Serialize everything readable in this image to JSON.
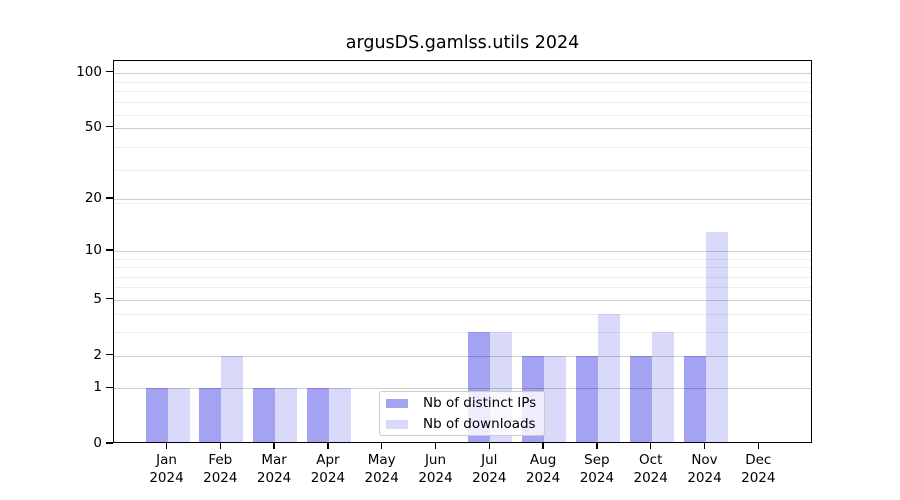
{
  "title": "argusDS.gamlss.utils 2024",
  "chart_data": {
    "type": "bar",
    "title": "argusDS.gamlss.utils 2024",
    "categories": [
      "Jan",
      "Feb",
      "Mar",
      "Apr",
      "May",
      "Jun",
      "Jul",
      "Aug",
      "Sep",
      "Oct",
      "Nov",
      "Dec"
    ],
    "x_year_label": "2024",
    "series": [
      {
        "name": "Nb of distinct IPs",
        "color": "#0000dc5c",
        "values": [
          1,
          1,
          1,
          1,
          0,
          0,
          3,
          2,
          2,
          2,
          2,
          0
        ]
      },
      {
        "name": "Nb of downloads",
        "color": "#0000dc26",
        "values": [
          1,
          2,
          1,
          1,
          0,
          0,
          3,
          2,
          4,
          3,
          13,
          0
        ]
      }
    ],
    "y_axis": {
      "scale": "log1p",
      "tick_values": [
        0,
        1,
        2,
        5,
        10,
        20,
        50,
        100
      ],
      "tick_labels": [
        "0",
        "1",
        "2",
        "5",
        "10",
        "20",
        "50",
        "100"
      ],
      "minor_gridlines_1plus_v": [
        4,
        5,
        7,
        8,
        9,
        10,
        20,
        30,
        40,
        60,
        70,
        80,
        90
      ],
      "top_value": 116
    },
    "grid": "horizontal",
    "legend": {
      "location": "lower center",
      "entries": [
        "Nb of distinct IPs",
        "Nb of downloads"
      ]
    },
    "colors": {
      "bar_distinct_ips": "#0000dc5c",
      "bar_downloads": "#0000dc26",
      "major_grid": "#cfcfcf",
      "minor_grid": "#ededed",
      "axis": "#000000"
    }
  }
}
